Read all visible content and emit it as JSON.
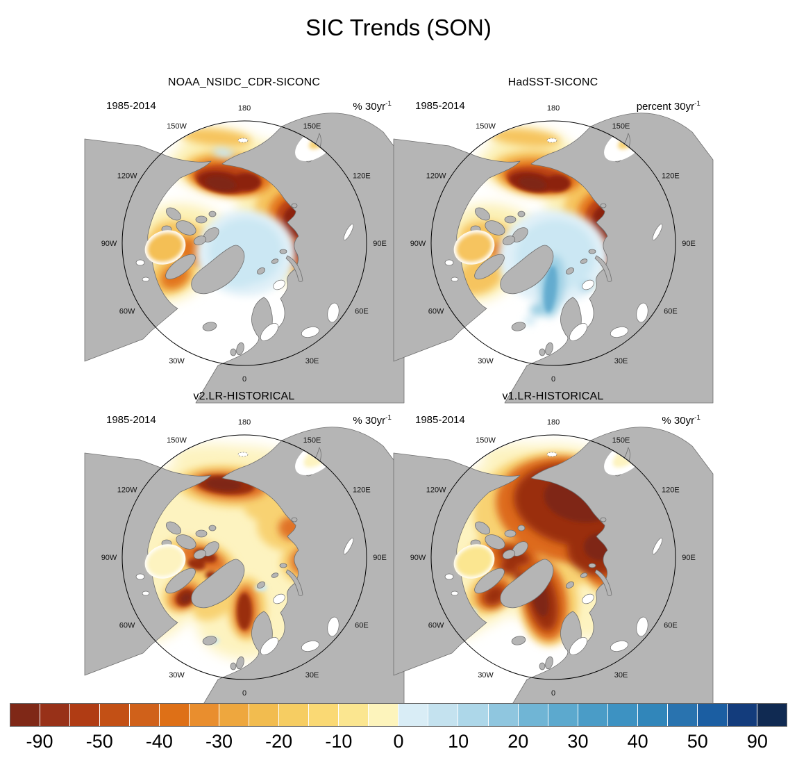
{
  "figure": {
    "title": "SIC Trends (SON)"
  },
  "panels": [
    {
      "id": "noaa",
      "title": "NOAA_NSIDC_CDR-SICONC",
      "period": "1985-2014",
      "units": "% 30yr",
      "units_exponent": "-1"
    },
    {
      "id": "hadsst",
      "title": "HadSST-SICONC",
      "period": "1985-2014",
      "units": "percent 30yr",
      "units_exponent": "-1"
    },
    {
      "id": "v2lr",
      "title": "v2.LR-HISTORICAL",
      "period": "1985-2014",
      "units": "% 30yr",
      "units_exponent": "-1"
    },
    {
      "id": "v1lr",
      "title": "v1.LR-HISTORICAL",
      "period": "1985-2014",
      "units": "% 30yr",
      "units_exponent": "-1"
    }
  ],
  "map_ring_labels": [
    {
      "text": "180",
      "angle": 0
    },
    {
      "text": "150E",
      "angle": 30
    },
    {
      "text": "120E",
      "angle": 60
    },
    {
      "text": "90E",
      "angle": 90
    },
    {
      "text": "60E",
      "angle": 120
    },
    {
      "text": "30E",
      "angle": 150
    },
    {
      "text": "0",
      "angle": 180
    },
    {
      "text": "30W",
      "angle": 210
    },
    {
      "text": "60W",
      "angle": 240
    },
    {
      "text": "90W",
      "angle": 270
    },
    {
      "text": "120W",
      "angle": 300
    },
    {
      "text": "150W",
      "angle": 330
    }
  ],
  "colorbar": {
    "colors": [
      "#7F2817",
      "#983118",
      "#B03C14",
      "#C35015",
      "#D0611A",
      "#DE7017",
      "#E98E2E",
      "#EEA73E",
      "#F2BC4F",
      "#F6CD62",
      "#FAD974",
      "#FBE690",
      "#FDF4BC",
      "#D9EDF6",
      "#C4E2EF",
      "#ADD7E9",
      "#8FC6DF",
      "#70B5D5",
      "#5CA9CE",
      "#4A9CC7",
      "#3D92C2",
      "#3186BA",
      "#2973AF",
      "#1B5EA2",
      "#133C7C",
      "#102A52"
    ],
    "levels": [
      -90,
      -70,
      -50,
      -45,
      -40,
      -35,
      -30,
      -25,
      -20,
      -15,
      -10,
      -5,
      0,
      5,
      10,
      15,
      20,
      25,
      30,
      35,
      40,
      45,
      50,
      70,
      90
    ],
    "ticks": [
      {
        "label": "-90",
        "boundary": 1
      },
      {
        "label": "-50",
        "boundary": 3
      },
      {
        "label": "-40",
        "boundary": 5
      },
      {
        "label": "-30",
        "boundary": 7
      },
      {
        "label": "-20",
        "boundary": 9
      },
      {
        "label": "-10",
        "boundary": 11
      },
      {
        "label": "0",
        "boundary": 13
      },
      {
        "label": "10",
        "boundary": 15
      },
      {
        "label": "20",
        "boundary": 17
      },
      {
        "label": "30",
        "boundary": 19
      },
      {
        "label": "40",
        "boundary": 21
      },
      {
        "label": "50",
        "boundary": 23
      },
      {
        "label": "90",
        "boundary": 25
      }
    ]
  },
  "chart_data": {
    "type": "heatmap",
    "title": "SIC Trends (SON)",
    "subtitle": "Sea ice concentration trends for September-October-November",
    "period": "1985-2014",
    "units": "% per 30yr",
    "projection": "north polar stereographic, 0E at bottom, 180 at top",
    "levels": [
      -90,
      -70,
      -50,
      -45,
      -40,
      -35,
      -30,
      -25,
      -20,
      -15,
      -10,
      -5,
      0,
      5,
      10,
      15,
      20,
      25,
      30,
      35,
      40,
      45,
      50,
      70,
      90
    ],
    "colorbar_tick_labels": [
      "-90",
      "-50",
      "-40",
      "-30",
      "-20",
      "-10",
      "0",
      "10",
      "20",
      "30",
      "40",
      "50",
      "90"
    ],
    "palette": [
      "#7F2817",
      "#983118",
      "#B03C14",
      "#C35015",
      "#D0611A",
      "#DE7017",
      "#E98E2E",
      "#EEA73E",
      "#F2BC4F",
      "#F6CD62",
      "#FAD974",
      "#FBE690",
      "#FDF4BC",
      "#D9EDF6",
      "#C4E2EF",
      "#ADD7E9",
      "#8FC6DF",
      "#70B5D5",
      "#5CA9CE",
      "#4A9CC7",
      "#3D92C2",
      "#3186BA",
      "#2973AF",
      "#1B5EA2",
      "#133C7C",
      "#102A52"
    ],
    "legend_position": "bottom",
    "panels": [
      {
        "name": "NOAA_NSIDC_CDR-SICONC",
        "regional_trends_pct_per_30yr": {
          "Beaufort_Chukchi_East_Siberian_seas": -85,
          "Laptev_Sea": -80,
          "Kara_Sea": -75,
          "Barents_Sea": -20,
          "central_Arctic_near_pole": 8,
          "Hudson_Bay": -25,
          "Baffin_Bay": -30,
          "Canadian_Archipelago": -35,
          "Bering_Sea": -15,
          "Sea_of_Okhotsk": -12
        }
      },
      {
        "name": "HadSST-SICONC",
        "regional_trends_pct_per_30yr": {
          "Beaufort_Chukchi_East_Siberian_seas": -85,
          "Laptev_Sea": -80,
          "Kara_Sea": -70,
          "central_Arctic_near_pole": 10,
          "East_Greenland_Fram_Strait": 25,
          "Hudson_Bay": -20,
          "Baffin_Bay": -25,
          "Canadian_Archipelago": -30,
          "Bering_Sea": -12,
          "Sea_of_Okhotsk": -10
        }
      },
      {
        "name": "v2.LR-HISTORICAL",
        "regional_trends_pct_per_30yr": {
          "Beaufort_coastal_band": -80,
          "central_Arctic": -10,
          "Canadian_Archipelago_channels": -60,
          "Baffin_Bay_Davis_Strait": -55,
          "East_Greenland_Sea": -55,
          "Kara_Sea": -45,
          "Hudson_Bay": -8,
          "Barents_Sea": -10,
          "Bering_Sea": -8,
          "Sea_of_Okhotsk": -8
        }
      },
      {
        "name": "v1.LR-HISTORICAL",
        "regional_trends_pct_per_30yr": {
          "central_Arctic_Siberian_side": -75,
          "Laptev_Kara_seas": -70,
          "East_Greenland_Fram_Strait": -65,
          "Canadian_Archipelago": -55,
          "Baffin_Bay": -45,
          "Hudson_Bay": -10,
          "Barents_Sea": -15,
          "Bering_Sea": -10,
          "Sea_of_Okhotsk": -8,
          "Labrador_Sea": 5
        }
      }
    ]
  }
}
